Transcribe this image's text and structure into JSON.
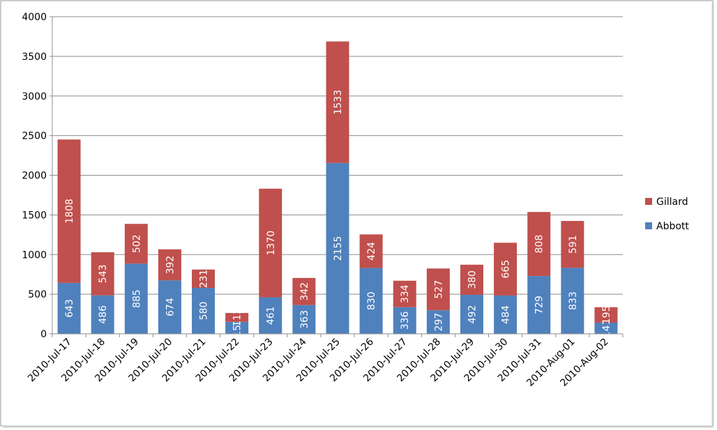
{
  "chart_data": {
    "type": "stacked_bar",
    "categories": [
      "2010-Jul-17",
      "2010-Jul-18",
      "2010-Jul-19",
      "2010-Jul-20",
      "2010-Jul-21",
      "2010-Jul-22",
      "2010-Jul-23",
      "2010-Jul-24",
      "2010-Jul-25",
      "2010-Jul-26",
      "2010-Jul-27",
      "2010-Jul-28",
      "2010-Jul-29",
      "2010-Jul-30",
      "2010-Jul-31",
      "2010-Aug-01",
      "2010-Aug-02"
    ],
    "series": [
      {
        "name": "Abbott",
        "color": "#4f81bd",
        "values": [
          643,
          486,
          885,
          674,
          580,
          151,
          461,
          363,
          2155,
          830,
          336,
          297,
          492,
          484,
          729,
          833,
          141
        ]
      },
      {
        "name": "Gillard",
        "color": "#c0504d",
        "values": [
          1808,
          543,
          502,
          392,
          231,
          112,
          1370,
          342,
          1533,
          424,
          334,
          527,
          380,
          665,
          808,
          591,
          195
        ]
      }
    ],
    "ylim": [
      0,
      4000
    ],
    "yticks": [
      0,
      500,
      1000,
      1500,
      2000,
      2500,
      3000,
      3500,
      4000
    ],
    "grid": true,
    "legend": "right"
  }
}
